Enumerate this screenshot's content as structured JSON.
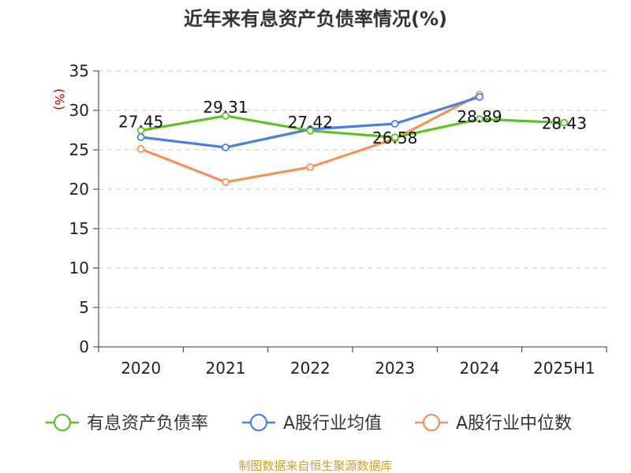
{
  "colors": {
    "series_green": "#5fc127",
    "series_blue": "#4e7fd9",
    "series_orange": "#f5915a",
    "ylabel": "#c00000",
    "source": "#c8a030"
  },
  "chart_data": {
    "type": "line",
    "title": "近年来有息资产负债率情况(%)",
    "xlabel": "",
    "ylabel": "(%)",
    "ylim": [
      0,
      35
    ],
    "yticks": [
      0,
      5,
      10,
      15,
      20,
      25,
      30,
      35
    ],
    "grid": true,
    "legend_position": "bottom",
    "categories": [
      "2020",
      "2021",
      "2022",
      "2023",
      "2024",
      "2025H1"
    ],
    "series": [
      {
        "name": "有息资产负债率",
        "color": "#5fc127",
        "values": [
          27.45,
          29.31,
          27.42,
          26.58,
          28.89,
          28.43
        ],
        "labels": [
          "27.45",
          "29.31",
          "27.42",
          "26.58",
          "28.89",
          "28.43"
        ]
      },
      {
        "name": "A股行业均值",
        "color": "#4e7fd9",
        "values": [
          26.6,
          25.3,
          27.6,
          28.3,
          31.7,
          null
        ]
      },
      {
        "name": "A股行业中位数",
        "color": "#f5915a",
        "values": [
          25.1,
          20.9,
          22.8,
          26.4,
          32.0,
          null
        ]
      }
    ],
    "source": "制图数据来自恒生聚源数据库"
  }
}
